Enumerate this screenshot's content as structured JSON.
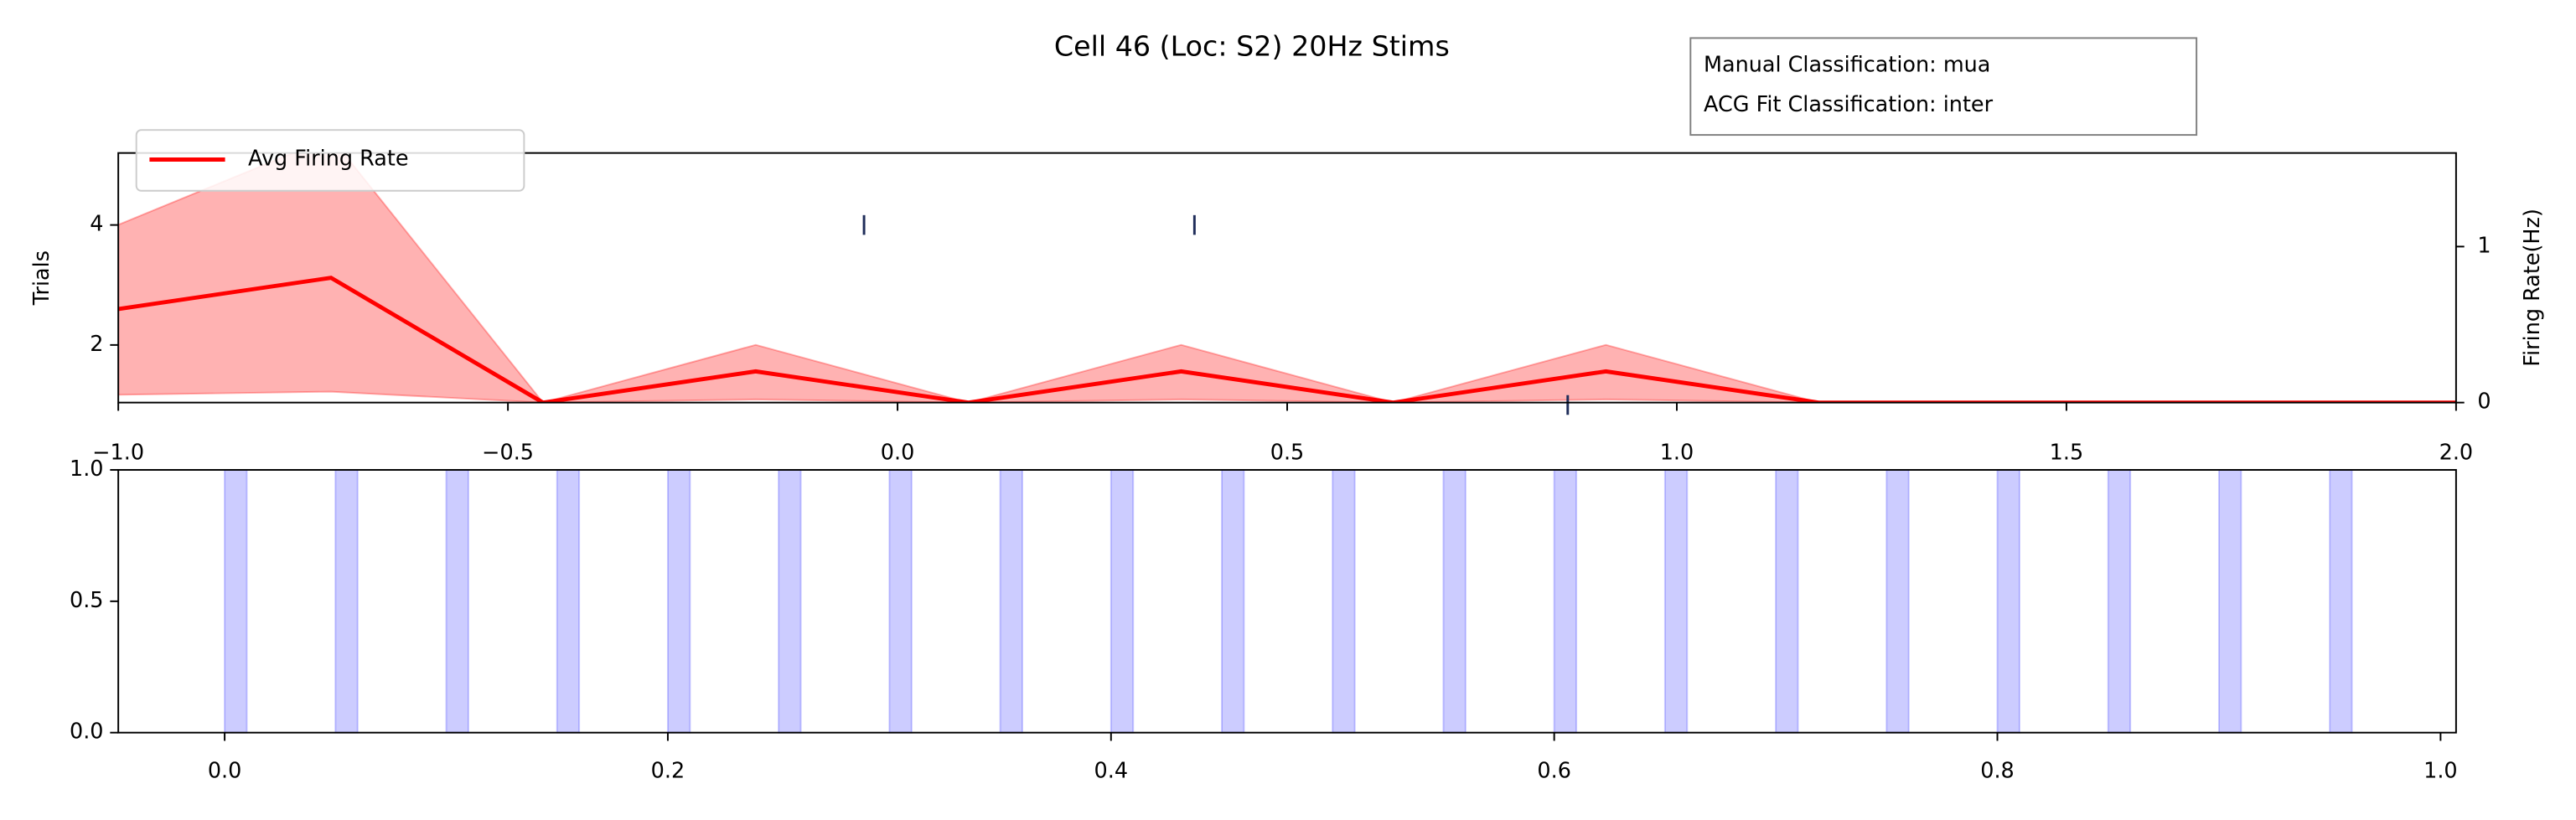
{
  "chart_data": [
    {
      "type": "line",
      "title": "Cell 46 (Loc: S2) 20Hz Stims",
      "box_text": [
        "Manual Classification: mua",
        "ACG Fit Classification: inter"
      ],
      "ylabel": "Trials",
      "y2label": "Firing Rate(Hz)",
      "xlim": [
        -1.0,
        2.0
      ],
      "xticks": [
        {
          "value": -1.0,
          "label": "−1.0"
        },
        {
          "value": -0.5,
          "label": "−0.5"
        },
        {
          "value": 0.0,
          "label": "0.0"
        },
        {
          "value": 0.5,
          "label": "0.5"
        },
        {
          "value": 1.0,
          "label": "1.0"
        },
        {
          "value": 1.5,
          "label": "1.5"
        },
        {
          "value": 2.0,
          "label": "2.0"
        }
      ],
      "ylim": [
        1.04,
        5.2
      ],
      "yticks": [
        2,
        4
      ],
      "y2lim": [
        0,
        1.6
      ],
      "y2ticks": [
        0,
        1
      ],
      "raster": {
        "x": [
          -0.043,
          0.381,
          0.86
        ],
        "trials": [
          4,
          4,
          1
        ],
        "color": "#1f2d5a"
      },
      "x": [
        -1.0,
        -0.727,
        -0.455,
        -0.182,
        0.091,
        0.364,
        0.636,
        0.909,
        1.182,
        1.455,
        1.727,
        2.0
      ],
      "series": [
        {
          "name": "Avg Firing Rate",
          "color": "#ff0000",
          "axis": "y2",
          "values": [
            0.6,
            0.8,
            0,
            0.2,
            0,
            0.2,
            0,
            0.2,
            0,
            0,
            0,
            0
          ],
          "upper": [
            1.14,
            1.7,
            0,
            0.37,
            0,
            0.37,
            0,
            0.37,
            0,
            0,
            0,
            0
          ],
          "lower": [
            0.05,
            0.07,
            0,
            0.02,
            0,
            0.02,
            0,
            0.02,
            0,
            0,
            0,
            0
          ]
        }
      ],
      "legend": "upper left"
    },
    {
      "type": "span",
      "xlim": [
        -0.048,
        1.007
      ],
      "xticks": [
        {
          "value": 0.0,
          "label": "0.0"
        },
        {
          "value": 0.2,
          "label": "0.2"
        },
        {
          "value": 0.4,
          "label": "0.4"
        },
        {
          "value": 0.6,
          "label": "0.6"
        },
        {
          "value": 0.8,
          "label": "0.8"
        },
        {
          "value": 1.0,
          "label": "1.0"
        }
      ],
      "ylim": [
        0,
        1
      ],
      "yticks": [
        {
          "value": 0,
          "label": "0.0"
        },
        {
          "value": 0.5,
          "label": "0.5"
        },
        {
          "value": 1,
          "label": "1.0"
        }
      ],
      "color": "#0000ff",
      "spans": [
        [
          0,
          0.01
        ],
        [
          0.05,
          0.06
        ],
        [
          0.1,
          0.11
        ],
        [
          0.15,
          0.16
        ],
        [
          0.2,
          0.21
        ],
        [
          0.25,
          0.26
        ],
        [
          0.3,
          0.31
        ],
        [
          0.35,
          0.36
        ],
        [
          0.4,
          0.41
        ],
        [
          0.45,
          0.46
        ],
        [
          0.5,
          0.51
        ],
        [
          0.55,
          0.56
        ],
        [
          0.6,
          0.61
        ],
        [
          0.65,
          0.66
        ],
        [
          0.7,
          0.71
        ],
        [
          0.75,
          0.76
        ],
        [
          0.8,
          0.81
        ],
        [
          0.85,
          0.86
        ],
        [
          0.9,
          0.91
        ],
        [
          0.95,
          0.96
        ]
      ]
    }
  ]
}
